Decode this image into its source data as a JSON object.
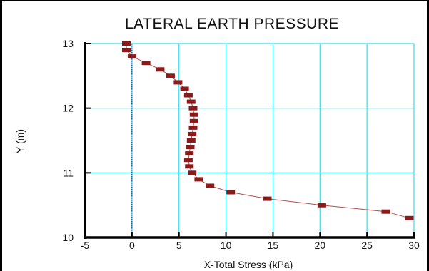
{
  "chart_data": {
    "type": "line",
    "title": "LATERAL EARTH PRESSURE",
    "xlabel": "X-Total Stress (kPa)",
    "ylabel": "Y (m)",
    "xlim": [
      -5,
      30
    ],
    "ylim": [
      10,
      13
    ],
    "x_ticks": [
      "-5",
      "0",
      "5",
      "10",
      "15",
      "20",
      "25",
      "30"
    ],
    "y_ticks": [
      "10",
      "11",
      "12",
      "13"
    ],
    "x_tick_values": [
      -5,
      0,
      5,
      10,
      15,
      20,
      25,
      30
    ],
    "y_tick_values": [
      10,
      11,
      12,
      13
    ],
    "grid": true,
    "series": [
      {
        "points": [
          [
            -0.6,
            13.0
          ],
          [
            -0.6,
            12.9
          ],
          [
            0.0,
            12.8
          ],
          [
            1.5,
            12.7
          ],
          [
            3.0,
            12.6
          ],
          [
            4.1,
            12.5
          ],
          [
            4.9,
            12.4
          ],
          [
            5.6,
            12.3
          ],
          [
            6.0,
            12.2
          ],
          [
            6.3,
            12.1
          ],
          [
            6.5,
            12.0
          ],
          [
            6.6,
            11.9
          ],
          [
            6.6,
            11.8
          ],
          [
            6.5,
            11.7
          ],
          [
            6.4,
            11.6
          ],
          [
            6.3,
            11.5
          ],
          [
            6.2,
            11.4
          ],
          [
            6.1,
            11.3
          ],
          [
            6.0,
            11.2
          ],
          [
            6.1,
            11.1
          ],
          [
            6.4,
            11.0
          ],
          [
            7.1,
            10.9
          ],
          [
            8.3,
            10.8
          ],
          [
            10.5,
            10.7
          ],
          [
            14.4,
            10.6
          ],
          [
            20.2,
            10.5
          ],
          [
            27.0,
            10.4
          ],
          [
            29.5,
            10.3
          ]
        ]
      }
    ]
  },
  "colors": {
    "grid": "#33ddee",
    "series": "#8b1a1a",
    "line": "#b05050",
    "axis": "#000000",
    "zero_line": "#1a2a7a"
  }
}
